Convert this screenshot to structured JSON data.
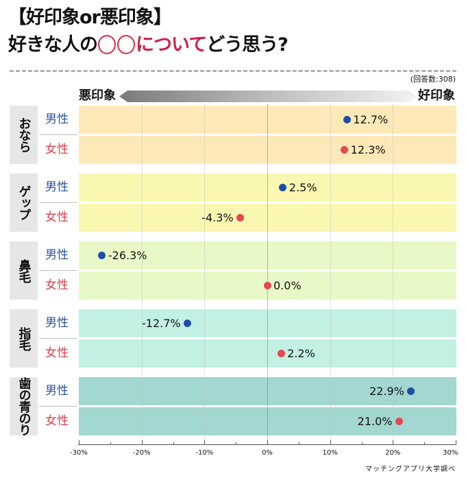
{
  "header": {
    "title_line1": "【好印象or悪印象】",
    "title_line2_prefix": "好きな人の",
    "title_line2_placeholder": "◯◯",
    "title_line2_highlight": "について",
    "title_line2_suffix": "どう思う?",
    "response_count": "(回答数:308)"
  },
  "scale": {
    "bad_label": "悪印象",
    "good_label": "好印象"
  },
  "colors": {
    "male": "#1f4ea5",
    "female": "#e5484f",
    "male_label": "#2a52a0",
    "female_label": "#e0404a",
    "highlight": "#d01f48"
  },
  "chart_data": {
    "type": "scatter",
    "title": "【好印象or悪印象】好きな人の◯◯についてどう思う?",
    "xlabel": "",
    "ylabel": "",
    "xlim": [
      -30,
      30
    ],
    "x_ticks": [
      -30,
      -20,
      -10,
      0,
      10,
      20,
      30
    ],
    "x_tick_labels": [
      "-30%",
      "-20%",
      "-10%",
      "0%",
      "10%",
      "20%",
      "30%"
    ],
    "grid": true,
    "series_names": [
      "男性",
      "女性"
    ],
    "groups": [
      {
        "name": "おなら",
        "color": "#fde9b8",
        "rows": [
          {
            "label": "男性",
            "gender": "male",
            "value": 12.7,
            "value_label": "12.7%"
          },
          {
            "label": "女性",
            "gender": "female",
            "value": 12.3,
            "value_label": "12.3%"
          }
        ]
      },
      {
        "name": "ゲップ",
        "color": "#f9f7b0",
        "rows": [
          {
            "label": "男性",
            "gender": "male",
            "value": 2.5,
            "value_label": "2.5%"
          },
          {
            "label": "女性",
            "gender": "female",
            "value": -4.3,
            "value_label": "-4.3%"
          }
        ]
      },
      {
        "name": "鼻毛",
        "color": "#e8f8c6",
        "rows": [
          {
            "label": "男性",
            "gender": "male",
            "value": -26.3,
            "value_label": "-26.3%"
          },
          {
            "label": "女性",
            "gender": "female",
            "value": 0.0,
            "value_label": "0.0%"
          }
        ]
      },
      {
        "name": "指毛",
        "color": "#c2f0e3",
        "rows": [
          {
            "label": "男性",
            "gender": "male",
            "value": -12.7,
            "value_label": "-12.7%"
          },
          {
            "label": "女性",
            "gender": "female",
            "value": 2.2,
            "value_label": "2.2%"
          }
        ]
      },
      {
        "name": "歯の青のり",
        "color": "#a3d7d1",
        "rows": [
          {
            "label": "男性",
            "gender": "male",
            "value": 22.9,
            "value_label": "22.9%"
          },
          {
            "label": "女性",
            "gender": "female",
            "value": 21.0,
            "value_label": "21.0%"
          }
        ]
      }
    ]
  },
  "footer": {
    "source": "マッチングアプリ大学調べ"
  }
}
